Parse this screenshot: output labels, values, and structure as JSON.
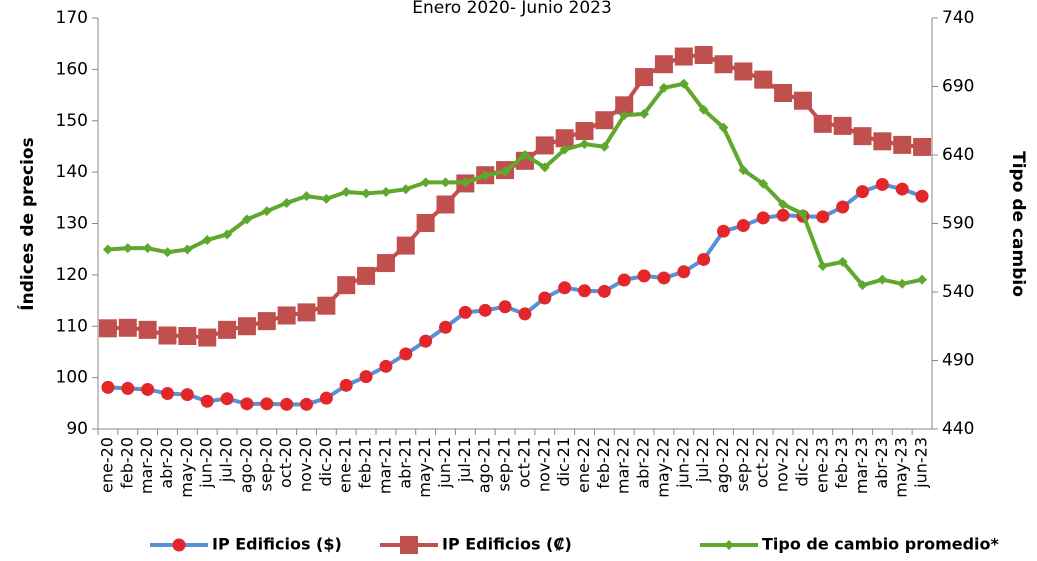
{
  "chart_data": {
    "type": "line",
    "title": "Enero 2020- Junio 2023",
    "y_label": "Índices de precios",
    "y2_label": "Tipo de cambio",
    "categories": [
      "ene-20",
      "feb-20",
      "mar-20",
      "abr-20",
      "may-20",
      "jun-20",
      "jul-20",
      "ago-20",
      "sep-20",
      "oct-20",
      "nov-20",
      "dic-20",
      "ene-21",
      "feb-21",
      "mar-21",
      "abr-21",
      "may-21",
      "jun-21",
      "jul-21",
      "ago-21",
      "sep-21",
      "oct-21",
      "nov-21",
      "dic-21",
      "ene-22",
      "feb-22",
      "mar-22",
      "abr-22",
      "may-22",
      "jun-22",
      "jul-22",
      "ago-22",
      "sep-22",
      "oct-22",
      "nov-22",
      "dic-22",
      "ene-23",
      "feb-23",
      "mar-23",
      "abr-23",
      "may-23",
      "jun-23"
    ],
    "ylim": [
      90,
      170
    ],
    "yticks": [
      90,
      100,
      110,
      120,
      130,
      140,
      150,
      160,
      170
    ],
    "y2lim": [
      440,
      740
    ],
    "y2ticks": [
      440,
      490,
      540,
      590,
      640,
      690,
      740
    ],
    "series": [
      {
        "name": "IP Edificios ($)",
        "color": "#5b8fd8",
        "marker": "circle",
        "marker_color": "#e3262a",
        "values": [
          98.1,
          97.9,
          97.7,
          96.9,
          96.7,
          95.4,
          95.9,
          94.9,
          94.9,
          94.8,
          94.8,
          96.0,
          98.5,
          100.2,
          102.2,
          104.6,
          107.1,
          109.8,
          112.7,
          113.1,
          113.8,
          112.4,
          115.5,
          117.5,
          116.9,
          116.8,
          119.0,
          119.8,
          119.4,
          120.6,
          123.0,
          128.5,
          129.6,
          131.1,
          131.6,
          131.4,
          131.3,
          133.2,
          136.2,
          137.6,
          136.7,
          135.3
        ]
      },
      {
        "name": "IP Edificios (₡)",
        "color": "#c0504d",
        "marker": "square",
        "marker_color": "#c0504d",
        "values": [
          109.6,
          109.7,
          109.3,
          108.2,
          108.1,
          107.8,
          109.3,
          110.0,
          111.0,
          112.1,
          112.7,
          114.0,
          118.0,
          119.8,
          122.3,
          125.7,
          130.1,
          133.7,
          137.8,
          139.4,
          140.4,
          142.2,
          145.2,
          146.6,
          148.0,
          150.1,
          153.0,
          158.5,
          161.0,
          162.5,
          162.8,
          161.0,
          159.6,
          158.0,
          155.4,
          153.9,
          149.4,
          149.0,
          147.0,
          146.0,
          145.3,
          144.9
        ]
      },
      {
        "name": "Tipo de cambio promedio*",
        "color": "#5fa82e",
        "marker": "diamond",
        "marker_color": "#5fa82e",
        "axis": "y2",
        "values": [
          571,
          572,
          572,
          569,
          571,
          578,
          582,
          593,
          599,
          605,
          610,
          608,
          613,
          612,
          613,
          615,
          620,
          620,
          620,
          625,
          628,
          640,
          631,
          644,
          648,
          646,
          669,
          670,
          689,
          692,
          673,
          660,
          629,
          619,
          604,
          597,
          559,
          562,
          545,
          549,
          546,
          549
        ]
      }
    ]
  }
}
